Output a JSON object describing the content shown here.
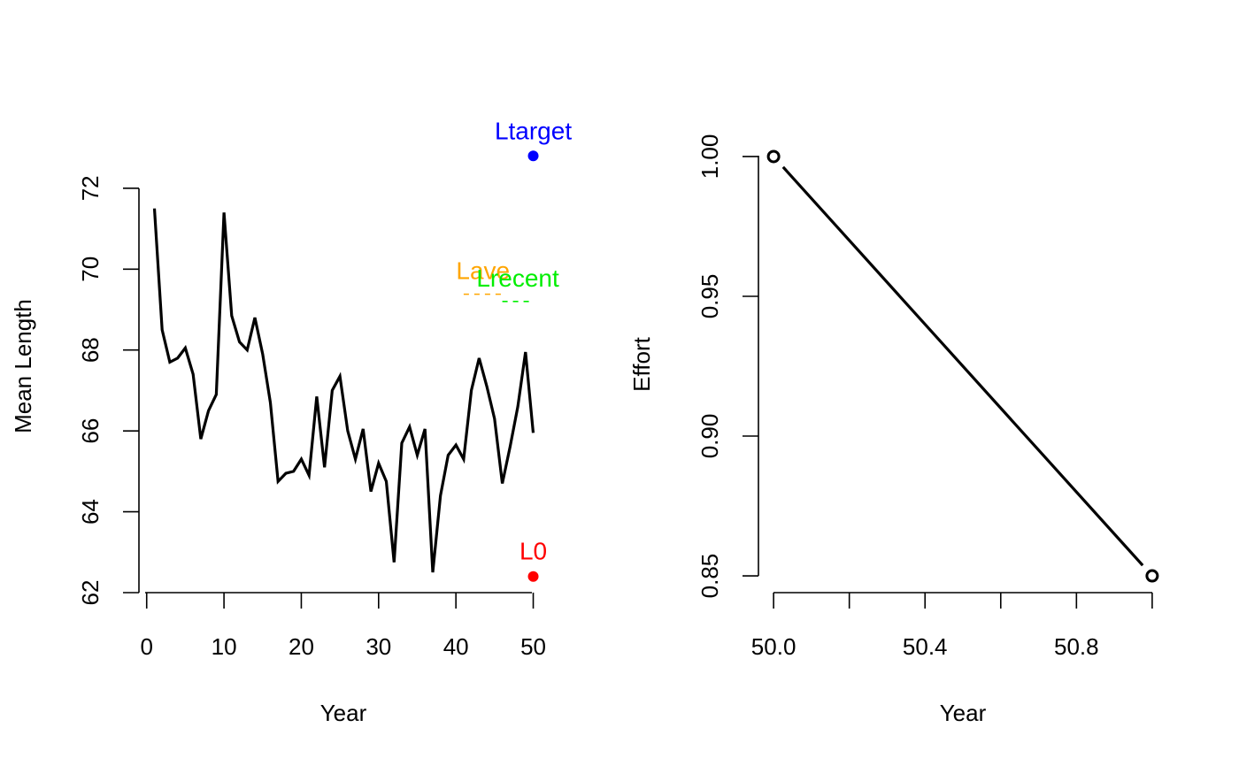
{
  "chart_data": [
    {
      "type": "line",
      "title": "",
      "xlabel": "Year",
      "ylabel": "Mean Length",
      "xlim": [
        -1,
        52
      ],
      "ylim": [
        62,
        73.2
      ],
      "xticks": [
        0,
        10,
        20,
        30,
        40,
        50
      ],
      "xtick_labels": [
        "0",
        "10",
        "20",
        "30",
        "40",
        "50"
      ],
      "yticks": [
        62,
        64,
        66,
        68,
        70,
        72
      ],
      "ytick_labels": [
        "62",
        "64",
        "66",
        "68",
        "70",
        "72"
      ],
      "grid": false,
      "series": [
        {
          "color": "#000000",
          "x": [
            1,
            2,
            3,
            4,
            5,
            6,
            7,
            8,
            9,
            10,
            11,
            12,
            13,
            14,
            15,
            16,
            17,
            18,
            19,
            20,
            21,
            22,
            23,
            24,
            25,
            26,
            27,
            28,
            29,
            30,
            31,
            32,
            33,
            34,
            35,
            36,
            37,
            38,
            39,
            40,
            41,
            42,
            43,
            44,
            45,
            46,
            47,
            48,
            49,
            50
          ],
          "y": [
            71.5,
            68.5,
            67.7,
            67.8,
            68.05,
            67.4,
            65.8,
            66.5,
            66.9,
            71.4,
            68.85,
            68.2,
            68.0,
            68.8,
            67.9,
            66.7,
            64.75,
            64.95,
            65.0,
            65.3,
            64.9,
            66.85,
            65.1,
            67.0,
            67.35,
            66.0,
            65.3,
            66.05,
            64.5,
            65.2,
            64.75,
            62.75,
            65.7,
            66.1,
            65.4,
            66.05,
            62.5,
            64.4,
            65.4,
            65.65,
            65.3,
            67.0,
            67.8,
            67.1,
            66.3,
            64.7,
            65.6,
            66.6,
            67.95,
            65.95
          ]
        }
      ],
      "annotations": [
        {
          "kind": "point",
          "label": "Ltarget",
          "x": 50,
          "y": 72.8,
          "color": "#0000ff"
        },
        {
          "kind": "point",
          "label": "L0",
          "x": 50,
          "y": 62.4,
          "color": "#ff0000"
        },
        {
          "kind": "dashed",
          "label": "Lave",
          "x": [
            41,
            46
          ],
          "y": 69.38,
          "color": "#ffa500"
        },
        {
          "kind": "dashed",
          "label": "Lrecent",
          "x": [
            46,
            50
          ],
          "y": 69.2,
          "color": "#00ee00"
        }
      ]
    },
    {
      "type": "line",
      "title": "",
      "xlabel": "Year",
      "ylabel": "Effort",
      "xlim": [
        49.96,
        51.04
      ],
      "ylim": [
        0.844,
        1.006
      ],
      "xticks": [
        50.0,
        50.2,
        50.4,
        50.6,
        50.8,
        51.0
      ],
      "xtick_labels": [
        "50.0",
        "",
        "50.4",
        "",
        "50.8",
        ""
      ],
      "yticks": [
        0.85,
        0.9,
        0.95,
        1.0
      ],
      "ytick_labels": [
        "0.85",
        "0.90",
        "0.95",
        "1.00"
      ],
      "grid": false,
      "series": [
        {
          "color": "#000000",
          "x": [
            50,
            51
          ],
          "y": [
            1.0,
            0.85
          ],
          "markers": "open-circle"
        }
      ]
    }
  ]
}
